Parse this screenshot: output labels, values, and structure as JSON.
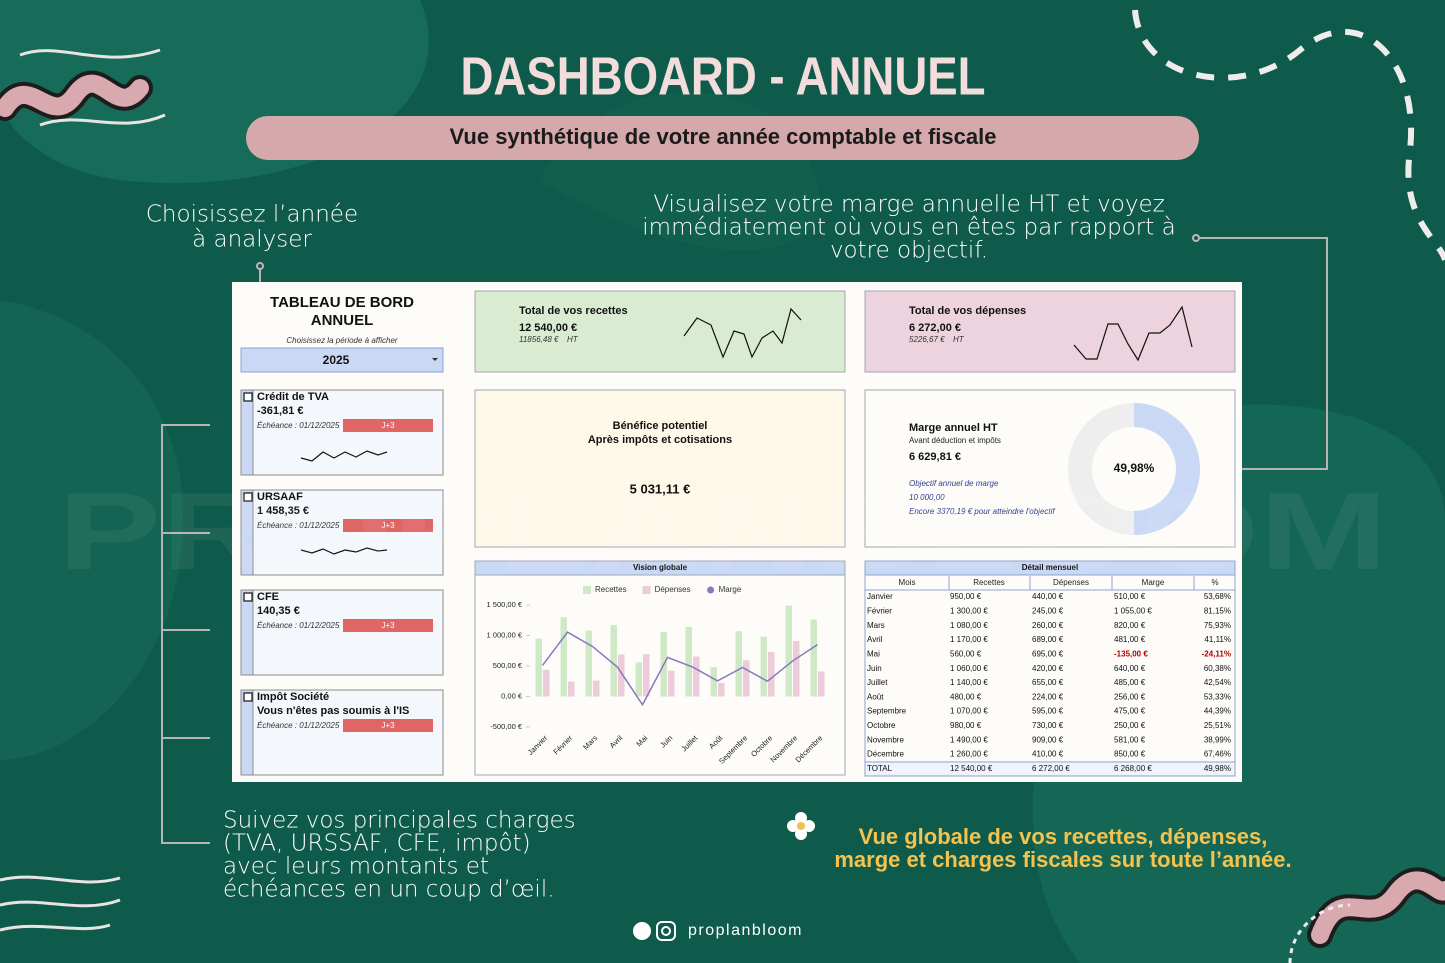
{
  "header": {
    "title": "DASHBOARD - ANNUEL",
    "subtitle": "Vue synthétique de votre année comptable et fiscale"
  },
  "annotations": {
    "year": [
      "Choisissez l’année",
      "à analyser"
    ],
    "margin": [
      "Visualisez votre marge annuelle HT et voyez",
      "immédiatement où vous en êtes par rapport à",
      "votre objectif."
    ],
    "charges": [
      "Suivez vos principales charges",
      "(TVA, URSSAF, CFE, impôt)",
      "avec leurs montants et",
      "échéances en un coup d’œil."
    ],
    "global": [
      "Vue globale de vos recettes, dépenses,",
      "marge et charges fiscales sur toute l’année."
    ]
  },
  "watermark": "PROPLANBLOOM",
  "footer": {
    "handle": "proplanbloom"
  },
  "dashboard": {
    "title": [
      "TABLEAU DE BORD",
      "ANNUEL"
    ],
    "period_label": "Choisissez la période à afficher",
    "year": "2025",
    "charges": [
      {
        "name": "Crédit de TVA",
        "amount": "-361,81 €",
        "due": "Échéance : 01/12/2025",
        "status": "J+3"
      },
      {
        "name": "URSAAF",
        "amount": "1 458,35 €",
        "due": "Échéance : 01/12/2025",
        "status": "J+3"
      },
      {
        "name": "CFE",
        "amount": "140,35 €",
        "due": "Échéance : 01/12/2025",
        "status": "J+3"
      },
      {
        "name": "Impôt Société",
        "amount": "Vous n'êtes pas soumis à l'IS",
        "due": "Échéance : 01/12/2025",
        "status": "J+3"
      }
    ],
    "recettes": {
      "label": "Total de vos recettes",
      "total": "12 540,00 €",
      "ht": "11856,48 €",
      "ht_unit": "HT"
    },
    "depenses": {
      "label": "Total de vos dépenses",
      "total": "6 272,00 €",
      "ht": "5226,67 €",
      "ht_unit": "HT"
    },
    "benefice": {
      "label": "Bénéfice potentiel",
      "sublabel": "Après impôts et cotisations",
      "value": "5 031,11 €"
    },
    "marge": {
      "label": "Marge annuel HT",
      "sublabel": "Avant déduction et impôts",
      "value": "6 629,81 €",
      "objective_label": "Objectif annuel de marge",
      "objective": "10 000,00",
      "remaining": "Encore 3370,19 € pour atteindre l'objectif"
    },
    "table": {
      "title": "Détail mensuel",
      "columns": [
        "Mois",
        "Recettes",
        "Dépenses",
        "Marge",
        "%"
      ],
      "rows": [
        [
          "Janvier",
          "950,00 €",
          "440,00 €",
          "510,00 €",
          "53,68%"
        ],
        [
          "Février",
          "1 300,00 €",
          "245,00 €",
          "1 055,00 €",
          "81,15%"
        ],
        [
          "Mars",
          "1 080,00 €",
          "260,00 €",
          "820,00 €",
          "75,93%"
        ],
        [
          "Avril",
          "1 170,00 €",
          "689,00 €",
          "481,00 €",
          "41,11%"
        ],
        [
          "Mai",
          "560,00 €",
          "695,00 €",
          "-135,00 €",
          "-24,11%"
        ],
        [
          "Juin",
          "1 060,00 €",
          "420,00 €",
          "640,00 €",
          "60,38%"
        ],
        [
          "Juillet",
          "1 140,00 €",
          "655,00 €",
          "485,00 €",
          "42,54%"
        ],
        [
          "Août",
          "480,00 €",
          "224,00 €",
          "256,00 €",
          "53,33%"
        ],
        [
          "Septembre",
          "1 070,00 €",
          "595,00 €",
          "475,00 €",
          "44,39%"
        ],
        [
          "Octobre",
          "980,00 €",
          "730,00 €",
          "250,00 €",
          "25,51%"
        ],
        [
          "Novembre",
          "1 490,00 €",
          "909,00 €",
          "581,00 €",
          "38,99%"
        ],
        [
          "Décembre",
          "1 260,00 €",
          "410,00 €",
          "850,00 €",
          "67,46%"
        ],
        [
          "TOTAL",
          "12 540,00 €",
          "6 272,00 €",
          "6 268,00 €",
          "49,98%"
        ]
      ]
    }
  },
  "chart_data": [
    {
      "type": "bar",
      "title": "Vision globale",
      "categories": [
        "Janvier",
        "Février",
        "Mars",
        "Avril",
        "Mai",
        "Juin",
        "Juillet",
        "Août",
        "Septembre",
        "Octobre",
        "Novembre",
        "Décembre"
      ],
      "series": [
        {
          "name": "Recettes",
          "color": "#cfe8c6",
          "values": [
            950,
            1300,
            1080,
            1170,
            560,
            1060,
            1140,
            480,
            1070,
            980,
            1490,
            1260
          ]
        },
        {
          "name": "Dépenses",
          "color": "#ecccda",
          "values": [
            440,
            245,
            260,
            689,
            695,
            420,
            655,
            224,
            595,
            730,
            909,
            410
          ]
        },
        {
          "name": "Marge",
          "color": "#8878c0",
          "type": "line",
          "values": [
            510,
            1055,
            820,
            481,
            -135,
            640,
            485,
            256,
            475,
            250,
            581,
            850
          ]
        }
      ],
      "ylim": [
        -500,
        1500
      ],
      "yticks": [
        {
          "value": -500,
          "label": "-500,00 €"
        },
        {
          "value": 0,
          "label": "0,00 €"
        },
        {
          "value": 500,
          "label": "500,00 €"
        },
        {
          "value": 1000,
          "label": "1 000,00 €"
        },
        {
          "value": 1500,
          "label": "1 500,00 €"
        }
      ],
      "legend": "top"
    },
    {
      "type": "pie",
      "values": [
        49.98
      ],
      "value_labels": [
        "49,98%"
      ],
      "color": "#c9d8f5"
    }
  ]
}
